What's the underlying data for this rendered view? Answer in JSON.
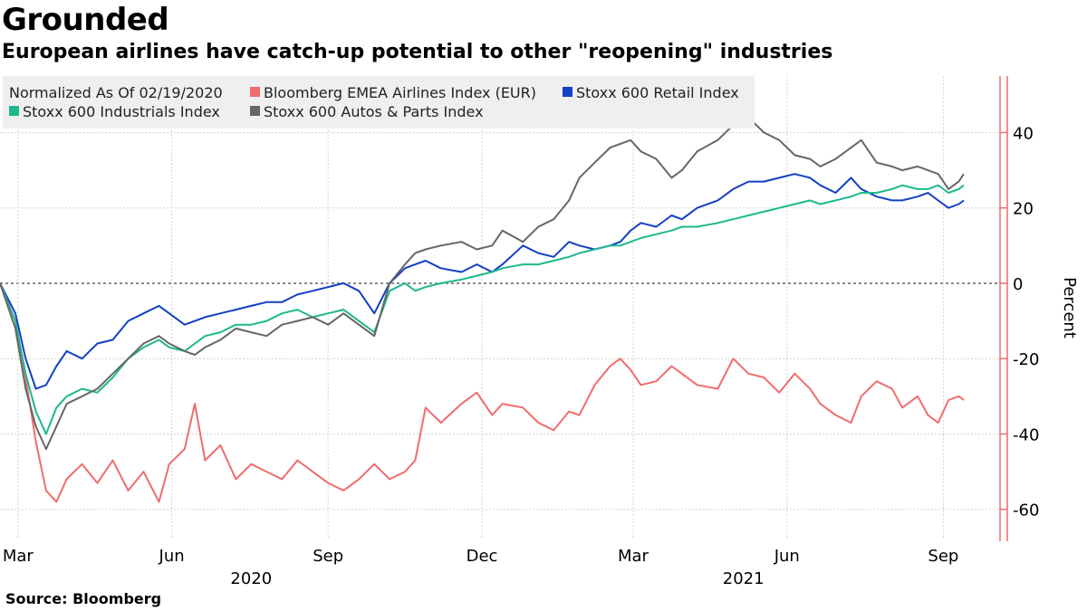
{
  "title": "Grounded",
  "subtitle": "European airlines have catch-up potential to other \"reopening\" industries",
  "source": "Source: Bloomberg",
  "chart_data": {
    "type": "line",
    "title": "Grounded",
    "subtitle": "European airlines have catch-up potential to other \"reopening\" industries",
    "ylabel": "Percent",
    "xlabel": "",
    "ylim": [
      -68,
      55
    ],
    "yticks": [
      40,
      20,
      0,
      -20,
      -40,
      -60
    ],
    "ytick_labels": [
      "40",
      "20",
      "0",
      "-20",
      "-40",
      "-60"
    ],
    "xlim": [
      0,
      19.4
    ],
    "xticks": [
      {
        "label": "Mar",
        "x": 0.35
      },
      {
        "label": "Jun",
        "x": 3.35
      },
      {
        "label": "Sep",
        "x": 6.4
      },
      {
        "label": "Dec",
        "x": 9.4
      },
      {
        "label": "Mar",
        "x": 12.35
      },
      {
        "label": "Jun",
        "x": 15.35
      },
      {
        "label": "Sep",
        "x": 18.4
      }
    ],
    "year_labels": [
      {
        "label": "2020",
        "x": 4.9
      },
      {
        "label": "2021",
        "x": 14.5
      }
    ],
    "legend_note": "Normalized As Of 02/19/2020",
    "x_unit": "months since 02/19/2020",
    "series": [
      {
        "name": "Bloomberg EMEA Airlines Index (EUR)",
        "color": "#f06c6c",
        "x": [
          0,
          0.3,
          0.5,
          0.7,
          0.9,
          1.1,
          1.3,
          1.6,
          1.9,
          2.2,
          2.5,
          2.8,
          3.1,
          3.3,
          3.6,
          3.8,
          4.0,
          4.3,
          4.6,
          4.9,
          5.2,
          5.5,
          5.8,
          6.1,
          6.4,
          6.7,
          7.0,
          7.3,
          7.6,
          7.9,
          8.1,
          8.3,
          8.6,
          9.0,
          9.3,
          9.6,
          9.8,
          10.2,
          10.5,
          10.8,
          11.1,
          11.3,
          11.6,
          11.9,
          12.1,
          12.3,
          12.5,
          12.8,
          13.1,
          13.3,
          13.6,
          14.0,
          14.3,
          14.6,
          14.9,
          15.2,
          15.5,
          15.8,
          16.0,
          16.3,
          16.6,
          16.8,
          17.1,
          17.4,
          17.6,
          17.9,
          18.1,
          18.3,
          18.5,
          18.7,
          18.8
        ],
        "values": [
          0,
          -10,
          -25,
          -42,
          -55,
          -58,
          -52,
          -48,
          -53,
          -47,
          -55,
          -50,
          -58,
          -48,
          -44,
          -32,
          -47,
          -43,
          -52,
          -48,
          -50,
          -52,
          -47,
          -50,
          -53,
          -55,
          -52,
          -48,
          -52,
          -50,
          -47,
          -33,
          -37,
          -32,
          -29,
          -35,
          -32,
          -33,
          -37,
          -39,
          -34,
          -35,
          -27,
          -22,
          -20,
          -23,
          -27,
          -26,
          -22,
          -24,
          -27,
          -28,
          -20,
          -24,
          -25,
          -29,
          -24,
          -28,
          -32,
          -35,
          -37,
          -30,
          -26,
          -28,
          -33,
          -30,
          -35,
          -37,
          -31,
          -30,
          -31
        ]
      },
      {
        "name": "Stoxx 600 Retail Index",
        "color": "#1340c4",
        "x": [
          0,
          0.3,
          0.5,
          0.7,
          0.9,
          1.1,
          1.3,
          1.6,
          1.9,
          2.2,
          2.5,
          2.8,
          3.1,
          3.3,
          3.6,
          3.8,
          4.0,
          4.3,
          4.6,
          4.9,
          5.2,
          5.5,
          5.8,
          6.1,
          6.4,
          6.7,
          7.0,
          7.3,
          7.6,
          7.9,
          8.1,
          8.3,
          8.6,
          9.0,
          9.3,
          9.6,
          9.8,
          10.2,
          10.5,
          10.8,
          11.1,
          11.3,
          11.6,
          11.9,
          12.1,
          12.3,
          12.5,
          12.8,
          13.1,
          13.3,
          13.6,
          14.0,
          14.3,
          14.6,
          14.9,
          15.2,
          15.5,
          15.8,
          16.0,
          16.3,
          16.6,
          16.8,
          17.1,
          17.4,
          17.6,
          17.9,
          18.1,
          18.3,
          18.5,
          18.7,
          18.8
        ],
        "values": [
          0,
          -8,
          -20,
          -28,
          -27,
          -22,
          -18,
          -20,
          -16,
          -15,
          -10,
          -8,
          -6,
          -8,
          -11,
          -10,
          -9,
          -8,
          -7,
          -6,
          -5,
          -5,
          -3,
          -2,
          -1,
          0,
          -2,
          -8,
          0,
          4,
          5,
          6,
          4,
          3,
          5,
          3,
          5,
          10,
          8,
          7,
          11,
          10,
          9,
          10,
          11,
          14,
          16,
          15,
          18,
          17,
          20,
          22,
          25,
          27,
          27,
          28,
          29,
          28,
          26,
          24,
          28,
          25,
          23,
          22,
          22,
          23,
          24,
          22,
          20,
          21,
          22
        ]
      },
      {
        "name": "Stoxx 600 Industrials Index",
        "color": "#1db88e",
        "x": [
          0,
          0.3,
          0.5,
          0.7,
          0.9,
          1.1,
          1.3,
          1.6,
          1.9,
          2.2,
          2.5,
          2.8,
          3.1,
          3.3,
          3.6,
          3.8,
          4.0,
          4.3,
          4.6,
          4.9,
          5.2,
          5.5,
          5.8,
          6.1,
          6.4,
          6.7,
          7.0,
          7.3,
          7.6,
          7.9,
          8.1,
          8.3,
          8.6,
          9.0,
          9.3,
          9.6,
          9.8,
          10.2,
          10.5,
          10.8,
          11.1,
          11.3,
          11.6,
          11.9,
          12.1,
          12.3,
          12.5,
          12.8,
          13.1,
          13.3,
          13.6,
          14.0,
          14.3,
          14.6,
          14.9,
          15.2,
          15.5,
          15.8,
          16.0,
          16.3,
          16.6,
          16.8,
          17.1,
          17.4,
          17.6,
          17.9,
          18.1,
          18.3,
          18.5,
          18.7,
          18.8
        ],
        "values": [
          0,
          -10,
          -24,
          -34,
          -40,
          -33,
          -30,
          -28,
          -29,
          -25,
          -20,
          -17,
          -15,
          -17,
          -18,
          -16,
          -14,
          -13,
          -11,
          -11,
          -10,
          -8,
          -7,
          -9,
          -8,
          -7,
          -10,
          -13,
          -2,
          0,
          -2,
          -1,
          0,
          1,
          2,
          3,
          4,
          5,
          5,
          6,
          7,
          8,
          9,
          10,
          10,
          11,
          12,
          13,
          14,
          15,
          15,
          16,
          17,
          18,
          19,
          20,
          21,
          22,
          21,
          22,
          23,
          24,
          24,
          25,
          26,
          25,
          25,
          26,
          24,
          25,
          26
        ]
      },
      {
        "name": "Stoxx 600 Autos & Parts Index",
        "color": "#666666",
        "x": [
          0,
          0.3,
          0.5,
          0.7,
          0.9,
          1.1,
          1.3,
          1.6,
          1.9,
          2.2,
          2.5,
          2.8,
          3.1,
          3.3,
          3.6,
          3.8,
          4.0,
          4.3,
          4.6,
          4.9,
          5.2,
          5.5,
          5.8,
          6.1,
          6.4,
          6.7,
          7.0,
          7.3,
          7.6,
          7.9,
          8.1,
          8.3,
          8.6,
          9.0,
          9.3,
          9.6,
          9.8,
          10.2,
          10.5,
          10.8,
          11.1,
          11.3,
          11.6,
          11.9,
          12.1,
          12.3,
          12.5,
          12.8,
          13.1,
          13.3,
          13.6,
          14.0,
          14.3,
          14.6,
          14.9,
          15.2,
          15.5,
          15.8,
          16.0,
          16.3,
          16.6,
          16.8,
          17.1,
          17.4,
          17.6,
          17.9,
          18.1,
          18.3,
          18.5,
          18.7,
          18.8
        ],
        "values": [
          0,
          -12,
          -28,
          -38,
          -44,
          -38,
          -32,
          -30,
          -28,
          -24,
          -20,
          -16,
          -14,
          -16,
          -18,
          -19,
          -17,
          -15,
          -12,
          -13,
          -14,
          -11,
          -10,
          -9,
          -11,
          -8,
          -11,
          -14,
          0,
          5,
          8,
          9,
          10,
          11,
          9,
          10,
          14,
          11,
          15,
          17,
          22,
          28,
          32,
          36,
          37,
          38,
          35,
          33,
          28,
          30,
          35,
          38,
          42,
          44,
          40,
          38,
          34,
          33,
          31,
          33,
          36,
          38,
          32,
          31,
          30,
          31,
          30,
          29,
          25,
          27,
          29
        ]
      }
    ]
  }
}
